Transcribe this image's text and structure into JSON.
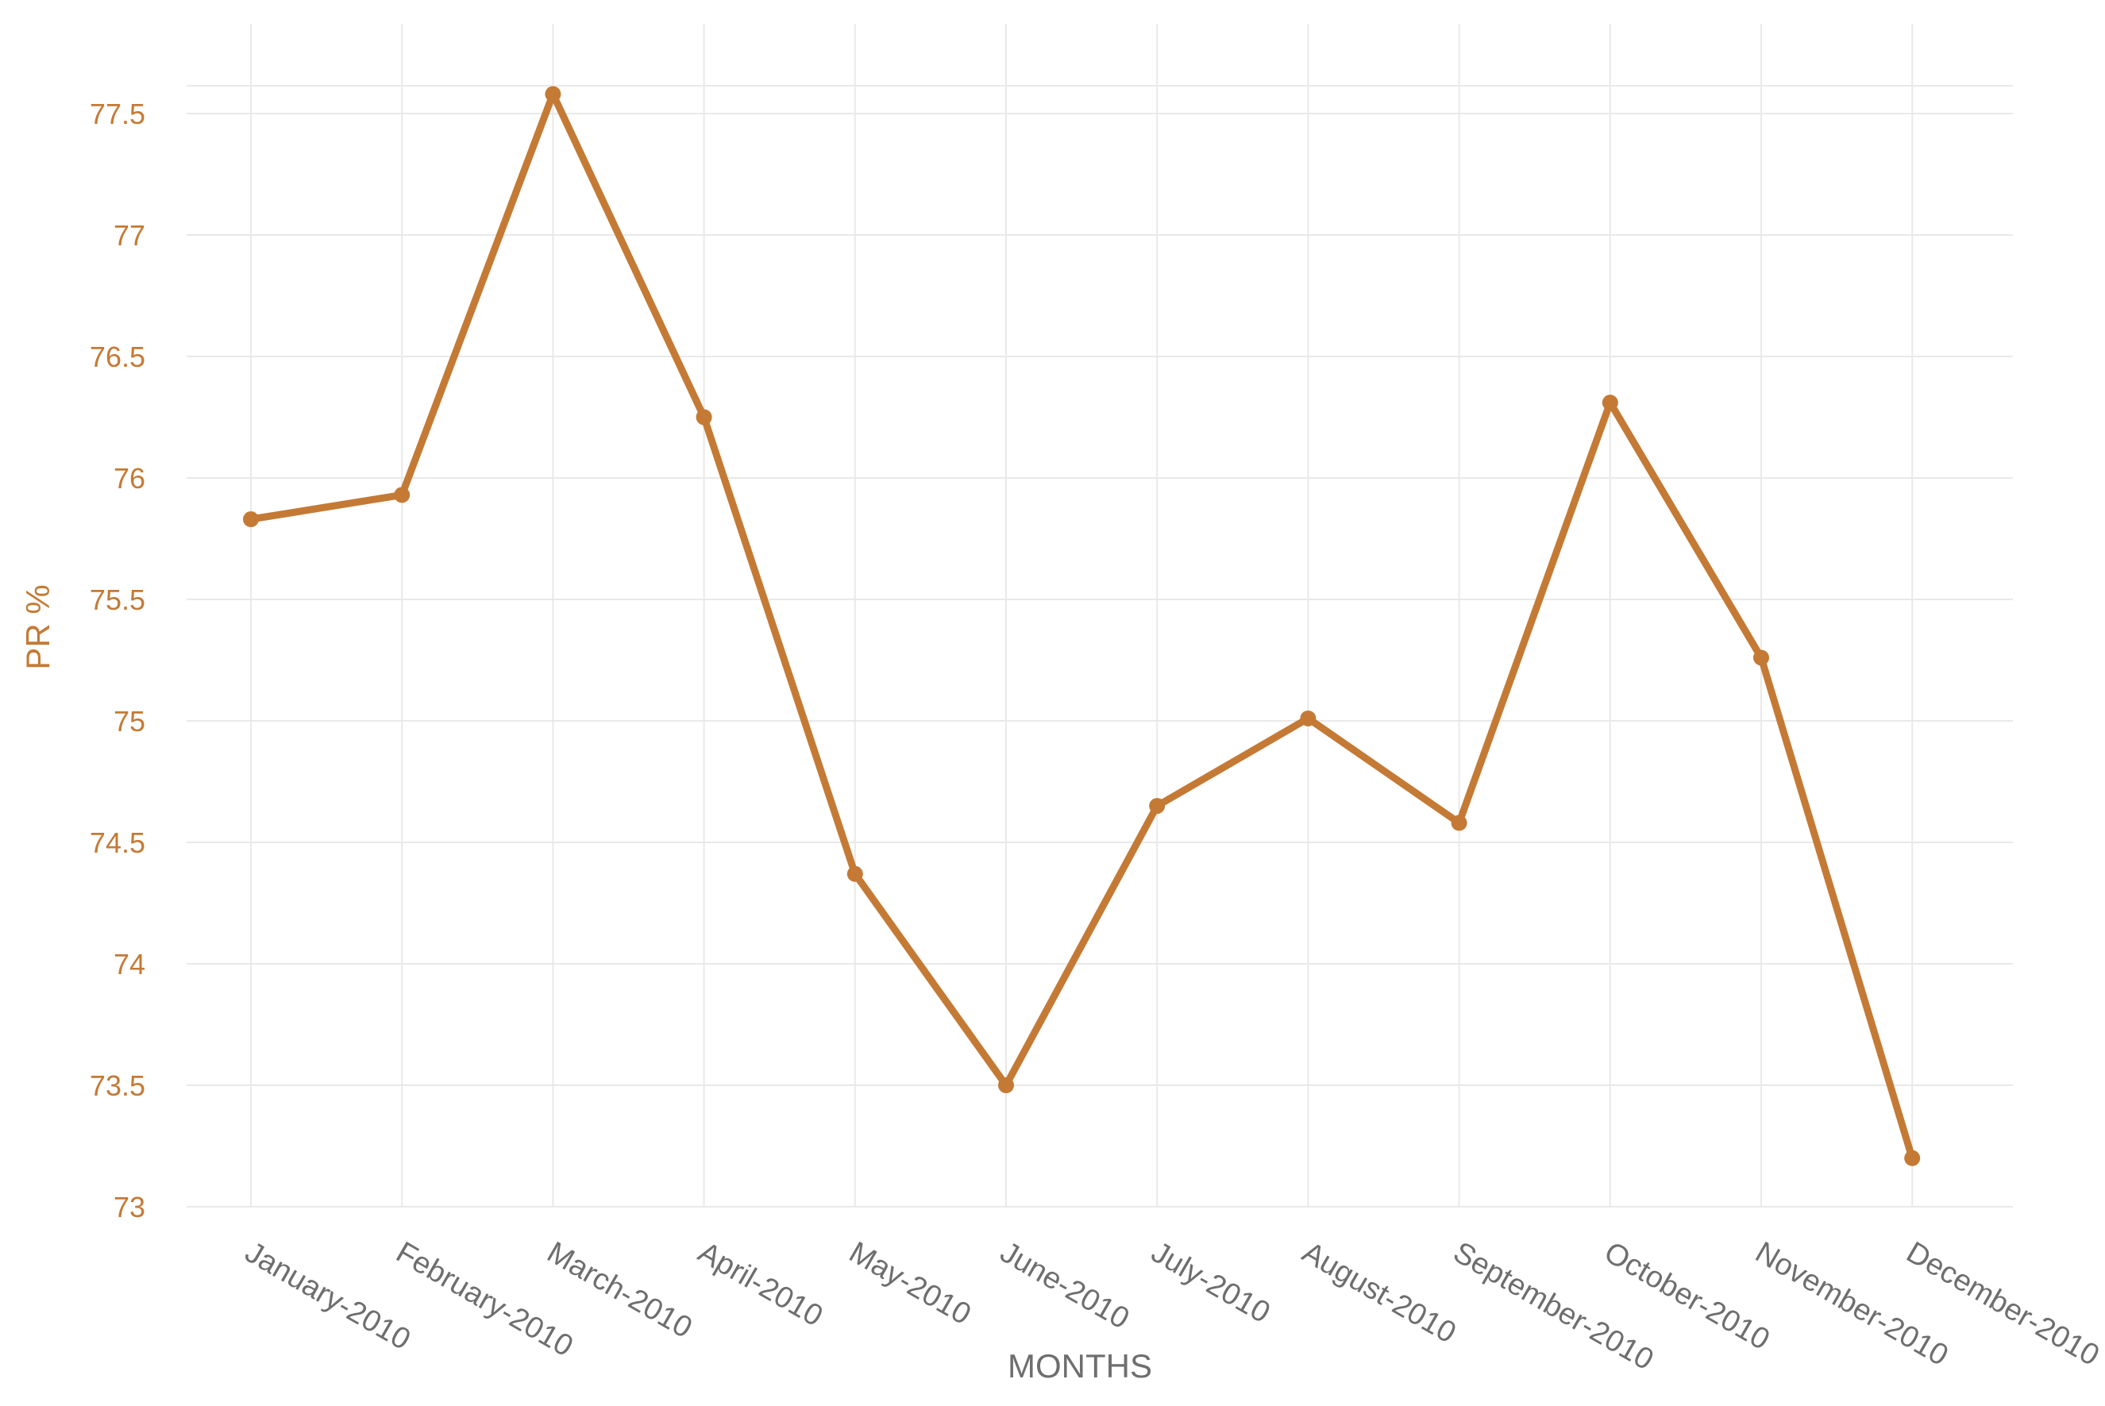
{
  "chart_data": {
    "type": "line",
    "xlabel": "MONTHS",
    "ylabel": "PR %",
    "categories": [
      "January-2010",
      "February-2010",
      "March-2010",
      "April-2010",
      "May-2010",
      "June-2010",
      "July-2010",
      "August-2010",
      "September-2010",
      "October-2010",
      "November-2010",
      "December-2010"
    ],
    "series": [
      {
        "values": [
          75.83,
          75.93,
          77.58,
          76.25,
          74.37,
          73.5,
          74.65,
          75.01,
          74.58,
          76.31,
          75.26,
          73.2
        ]
      }
    ],
    "ylim": [
      73,
      77.7
    ],
    "yticks": [
      "73",
      "73.5",
      "74",
      "74.5",
      "75",
      "75.5",
      "76",
      "76.5",
      "77",
      "77.5"
    ],
    "grid": true,
    "legend": "none",
    "colors": {
      "line": "#c47a35",
      "y_tick_text": "#c47a35",
      "ylabel_text": "#c47a35",
      "x_tick_text": "#6e6e6e",
      "xlabel_text": "#6e6e6e",
      "grid": "#e9e9e9"
    }
  }
}
